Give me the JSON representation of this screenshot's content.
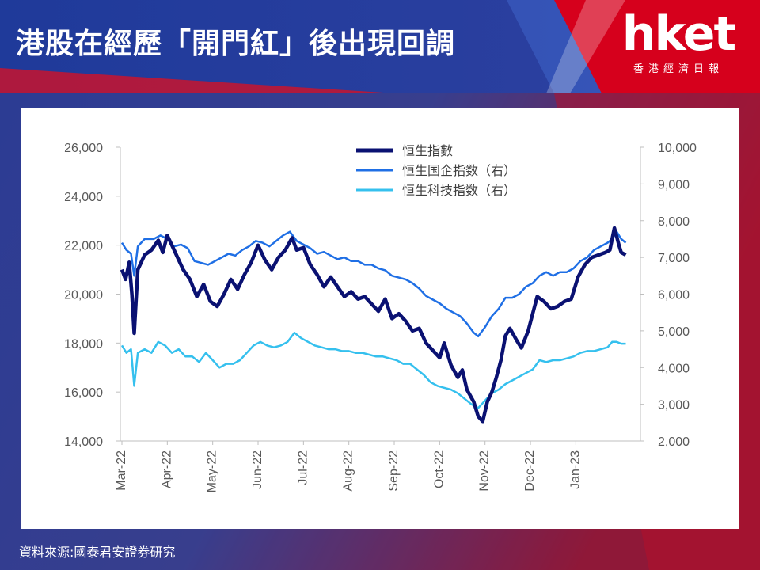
{
  "header": {
    "title": "港股在經歷「開門紅」後出現回調"
  },
  "logo": {
    "name": "hket",
    "tagline": "香港經濟日報"
  },
  "source": "資料來源:國泰君安證券研究",
  "colors": {
    "hsi": "#0a1172",
    "hscei": "#1f6fe5",
    "hstech": "#35c0ee"
  },
  "chart_data": {
    "type": "line",
    "x_labels": [
      "Mar-22",
      "Apr-22",
      "May-22",
      "Jun-22",
      "Jul-22",
      "Aug-22",
      "Sep-22",
      "Oct-22",
      "Nov-22",
      "Dec-22",
      "Jan-23"
    ],
    "x_range": [
      0,
      11
    ],
    "y_left": {
      "min": 14000,
      "max": 26000,
      "ticks": [
        "14,000",
        "16,000",
        "18,000",
        "20,000",
        "22,000",
        "24,000",
        "26,000"
      ]
    },
    "y_right": {
      "min": 2000,
      "max": 10000,
      "ticks": [
        "2,000",
        "3,000",
        "4,000",
        "5,000",
        "6,000",
        "7,000",
        "8,000",
        "9,000",
        "10,000"
      ]
    },
    "legend_position": "top-center",
    "series": [
      {
        "name": "恒生指數",
        "axis": "left",
        "points": [
          [
            0,
            21000
          ],
          [
            0.08,
            20600
          ],
          [
            0.16,
            21300
          ],
          [
            0.22,
            20000
          ],
          [
            0.27,
            18400
          ],
          [
            0.35,
            21000
          ],
          [
            0.5,
            21600
          ],
          [
            0.65,
            21800
          ],
          [
            0.8,
            22200
          ],
          [
            0.9,
            21700
          ],
          [
            1.0,
            22400
          ],
          [
            1.1,
            22000
          ],
          [
            1.2,
            21600
          ],
          [
            1.35,
            21000
          ],
          [
            1.5,
            20600
          ],
          [
            1.65,
            19900
          ],
          [
            1.8,
            20400
          ],
          [
            1.95,
            19700
          ],
          [
            2.1,
            19500
          ],
          [
            2.25,
            20000
          ],
          [
            2.4,
            20600
          ],
          [
            2.55,
            20200
          ],
          [
            2.7,
            20800
          ],
          [
            2.85,
            21300
          ],
          [
            3.0,
            22000
          ],
          [
            3.15,
            21400
          ],
          [
            3.3,
            21000
          ],
          [
            3.45,
            21500
          ],
          [
            3.6,
            21800
          ],
          [
            3.75,
            22300
          ],
          [
            3.85,
            21800
          ],
          [
            4.0,
            21900
          ],
          [
            4.15,
            21200
          ],
          [
            4.3,
            20800
          ],
          [
            4.45,
            20300
          ],
          [
            4.6,
            20700
          ],
          [
            4.75,
            20300
          ],
          [
            4.9,
            19900
          ],
          [
            5.05,
            20100
          ],
          [
            5.2,
            19800
          ],
          [
            5.35,
            19900
          ],
          [
            5.5,
            19600
          ],
          [
            5.65,
            19300
          ],
          [
            5.8,
            19800
          ],
          [
            5.95,
            19000
          ],
          [
            6.1,
            19200
          ],
          [
            6.25,
            18900
          ],
          [
            6.4,
            18500
          ],
          [
            6.55,
            18600
          ],
          [
            6.7,
            18000
          ],
          [
            6.85,
            17700
          ],
          [
            7.0,
            17400
          ],
          [
            7.1,
            18000
          ],
          [
            7.25,
            17100
          ],
          [
            7.4,
            16600
          ],
          [
            7.5,
            16900
          ],
          [
            7.6,
            16100
          ],
          [
            7.75,
            15600
          ],
          [
            7.85,
            15000
          ],
          [
            7.95,
            14800
          ],
          [
            8.05,
            15600
          ],
          [
            8.15,
            16000
          ],
          [
            8.25,
            16600
          ],
          [
            8.35,
            17300
          ],
          [
            8.45,
            18300
          ],
          [
            8.55,
            18600
          ],
          [
            8.7,
            18100
          ],
          [
            8.8,
            17800
          ],
          [
            8.95,
            18500
          ],
          [
            9.05,
            19200
          ],
          [
            9.15,
            19900
          ],
          [
            9.3,
            19700
          ],
          [
            9.45,
            19400
          ],
          [
            9.6,
            19500
          ],
          [
            9.75,
            19700
          ],
          [
            9.9,
            19800
          ],
          [
            10.05,
            20700
          ],
          [
            10.2,
            21200
          ],
          [
            10.35,
            21500
          ],
          [
            10.5,
            21600
          ],
          [
            10.65,
            21700
          ],
          [
            10.75,
            21800
          ],
          [
            10.85,
            22700
          ],
          [
            10.95,
            22000
          ],
          [
            11.0,
            21700
          ],
          [
            11.1,
            21600
          ]
        ]
      },
      {
        "name": "恒生国企指数（右）",
        "axis": "right",
        "points": [
          [
            0,
            7400
          ],
          [
            0.1,
            7200
          ],
          [
            0.2,
            7100
          ],
          [
            0.27,
            6500
          ],
          [
            0.35,
            7300
          ],
          [
            0.5,
            7500
          ],
          [
            0.7,
            7500
          ],
          [
            0.85,
            7600
          ],
          [
            1.0,
            7500
          ],
          [
            1.15,
            7300
          ],
          [
            1.3,
            7350
          ],
          [
            1.45,
            7250
          ],
          [
            1.6,
            6900
          ],
          [
            1.75,
            6850
          ],
          [
            1.9,
            6800
          ],
          [
            2.05,
            6900
          ],
          [
            2.2,
            7000
          ],
          [
            2.35,
            7100
          ],
          [
            2.5,
            7050
          ],
          [
            2.65,
            7200
          ],
          [
            2.8,
            7300
          ],
          [
            2.95,
            7450
          ],
          [
            3.1,
            7400
          ],
          [
            3.25,
            7300
          ],
          [
            3.4,
            7450
          ],
          [
            3.55,
            7600
          ],
          [
            3.7,
            7700
          ],
          [
            3.85,
            7450
          ],
          [
            4.0,
            7350
          ],
          [
            4.15,
            7250
          ],
          [
            4.3,
            7100
          ],
          [
            4.45,
            7150
          ],
          [
            4.6,
            7050
          ],
          [
            4.75,
            6950
          ],
          [
            4.9,
            7000
          ],
          [
            5.05,
            6900
          ],
          [
            5.2,
            6900
          ],
          [
            5.35,
            6800
          ],
          [
            5.5,
            6800
          ],
          [
            5.65,
            6700
          ],
          [
            5.8,
            6650
          ],
          [
            5.95,
            6500
          ],
          [
            6.1,
            6450
          ],
          [
            6.25,
            6400
          ],
          [
            6.4,
            6300
          ],
          [
            6.55,
            6150
          ],
          [
            6.7,
            5950
          ],
          [
            6.85,
            5850
          ],
          [
            7.0,
            5750
          ],
          [
            7.15,
            5600
          ],
          [
            7.3,
            5500
          ],
          [
            7.45,
            5400
          ],
          [
            7.6,
            5200
          ],
          [
            7.75,
            4950
          ],
          [
            7.85,
            4850
          ],
          [
            8.0,
            5100
          ],
          [
            8.15,
            5400
          ],
          [
            8.3,
            5600
          ],
          [
            8.45,
            5900
          ],
          [
            8.6,
            5900
          ],
          [
            8.75,
            6000
          ],
          [
            8.9,
            6200
          ],
          [
            9.05,
            6300
          ],
          [
            9.2,
            6500
          ],
          [
            9.35,
            6600
          ],
          [
            9.5,
            6500
          ],
          [
            9.65,
            6600
          ],
          [
            9.8,
            6600
          ],
          [
            9.95,
            6700
          ],
          [
            10.1,
            6900
          ],
          [
            10.25,
            7000
          ],
          [
            10.4,
            7200
          ],
          [
            10.55,
            7300
          ],
          [
            10.7,
            7400
          ],
          [
            10.8,
            7500
          ],
          [
            10.9,
            7700
          ],
          [
            11.0,
            7500
          ],
          [
            11.1,
            7400
          ]
        ]
      },
      {
        "name": "恒生科技指数（右）",
        "axis": "right",
        "points": [
          [
            0,
            4600
          ],
          [
            0.1,
            4400
          ],
          [
            0.2,
            4500
          ],
          [
            0.27,
            3500
          ],
          [
            0.35,
            4400
          ],
          [
            0.5,
            4500
          ],
          [
            0.65,
            4400
          ],
          [
            0.8,
            4700
          ],
          [
            0.95,
            4600
          ],
          [
            1.1,
            4400
          ],
          [
            1.25,
            4500
          ],
          [
            1.4,
            4300
          ],
          [
            1.55,
            4300
          ],
          [
            1.7,
            4150
          ],
          [
            1.85,
            4400
          ],
          [
            2.0,
            4200
          ],
          [
            2.15,
            4000
          ],
          [
            2.3,
            4100
          ],
          [
            2.45,
            4100
          ],
          [
            2.6,
            4200
          ],
          [
            2.75,
            4400
          ],
          [
            2.9,
            4600
          ],
          [
            3.05,
            4700
          ],
          [
            3.2,
            4600
          ],
          [
            3.35,
            4550
          ],
          [
            3.5,
            4600
          ],
          [
            3.65,
            4700
          ],
          [
            3.8,
            4950
          ],
          [
            3.95,
            4800
          ],
          [
            4.1,
            4700
          ],
          [
            4.25,
            4600
          ],
          [
            4.4,
            4550
          ],
          [
            4.55,
            4500
          ],
          [
            4.7,
            4500
          ],
          [
            4.85,
            4450
          ],
          [
            5.0,
            4450
          ],
          [
            5.15,
            4400
          ],
          [
            5.3,
            4400
          ],
          [
            5.45,
            4350
          ],
          [
            5.6,
            4300
          ],
          [
            5.75,
            4300
          ],
          [
            5.9,
            4250
          ],
          [
            6.05,
            4200
          ],
          [
            6.2,
            4100
          ],
          [
            6.35,
            4100
          ],
          [
            6.5,
            3950
          ],
          [
            6.65,
            3800
          ],
          [
            6.8,
            3600
          ],
          [
            6.95,
            3500
          ],
          [
            7.1,
            3450
          ],
          [
            7.25,
            3400
          ],
          [
            7.4,
            3300
          ],
          [
            7.55,
            3150
          ],
          [
            7.7,
            3000
          ],
          [
            7.85,
            2900
          ],
          [
            8.0,
            3100
          ],
          [
            8.15,
            3300
          ],
          [
            8.3,
            3400
          ],
          [
            8.45,
            3550
          ],
          [
            8.6,
            3650
          ],
          [
            8.75,
            3750
          ],
          [
            8.9,
            3850
          ],
          [
            9.05,
            3950
          ],
          [
            9.2,
            4200
          ],
          [
            9.35,
            4150
          ],
          [
            9.5,
            4200
          ],
          [
            9.65,
            4200
          ],
          [
            9.8,
            4250
          ],
          [
            9.95,
            4300
          ],
          [
            10.1,
            4400
          ],
          [
            10.25,
            4450
          ],
          [
            10.4,
            4450
          ],
          [
            10.55,
            4500
          ],
          [
            10.7,
            4550
          ],
          [
            10.8,
            4700
          ],
          [
            10.9,
            4700
          ],
          [
            11.0,
            4650
          ],
          [
            11.1,
            4650
          ]
        ]
      }
    ]
  }
}
